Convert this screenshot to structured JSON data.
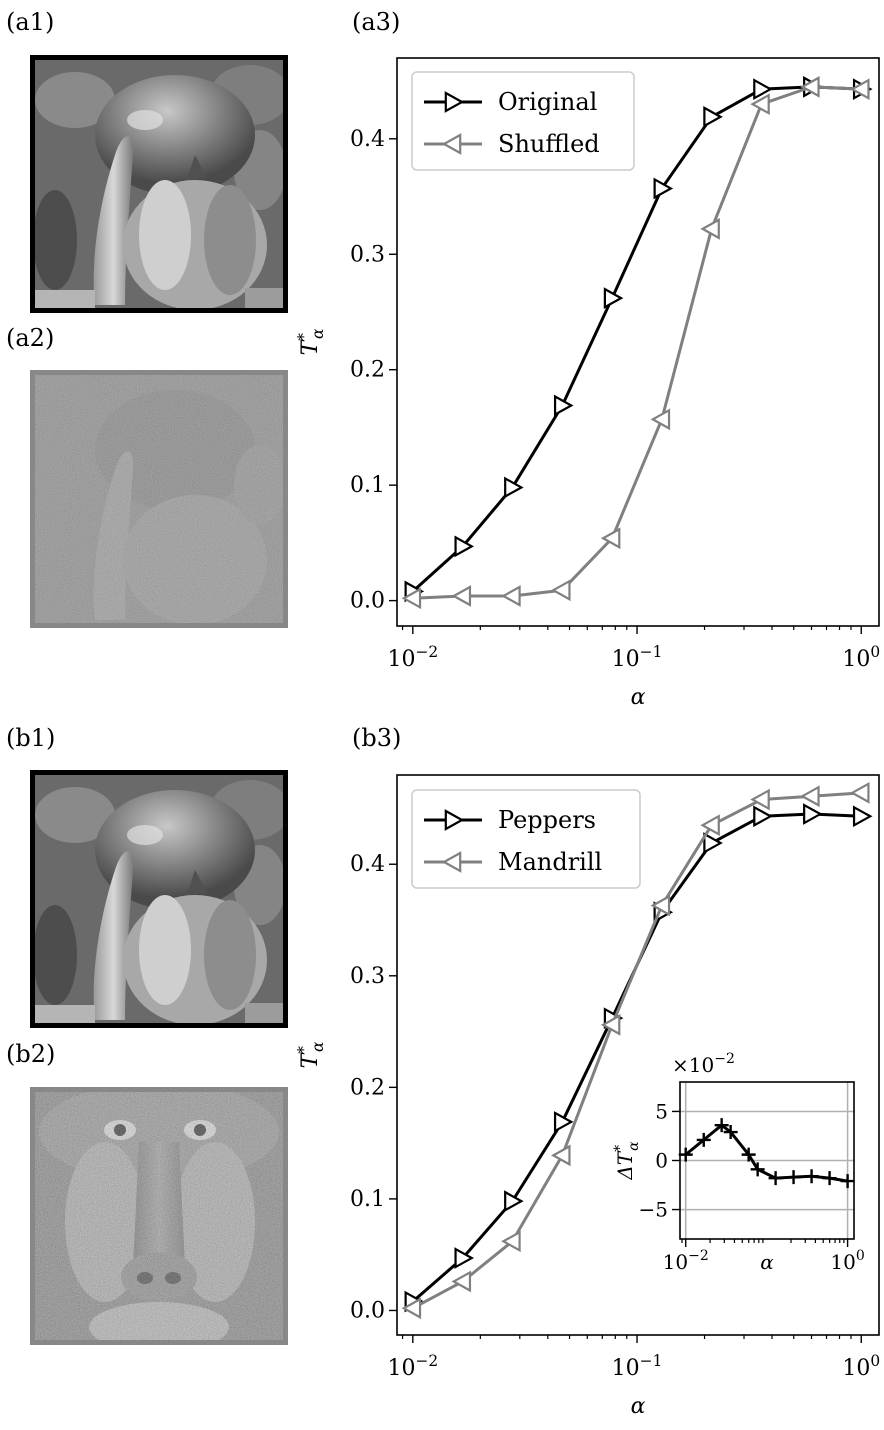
{
  "panels": {
    "a1": "(a1)",
    "a2": "(a2)",
    "a3": "(a3)",
    "b1": "(b1)",
    "b2": "(b2)",
    "b3": "(b3)"
  },
  "images": {
    "a1": "peppers-grayscale-image",
    "a2": "peppers-shuffled-noisy-image",
    "b1": "peppers-grayscale-image",
    "b2": "mandrill-grayscale-image"
  },
  "colors": {
    "black": "#000000",
    "gray": "#808080",
    "grid": "#b0b0b0"
  },
  "chart_data": [
    {
      "type": "line",
      "panel": "(a3)",
      "xlabel": "α",
      "ylabel": "T*_α",
      "xscale": "log",
      "xlim": [
        0.0085,
        1.2
      ],
      "ylim": [
        -0.022,
        0.47
      ],
      "xticks": [
        0.01,
        0.1,
        1
      ],
      "xtick_labels": [
        "10^-2",
        "10^-1",
        "10^0"
      ],
      "yticks": [
        0.0,
        0.1,
        0.2,
        0.3,
        0.4
      ],
      "ytick_labels": [
        "0.0",
        "0.1",
        "0.2",
        "0.3",
        "0.4"
      ],
      "legend_position": "top-left",
      "series": [
        {
          "name": "Original",
          "color": "#000000",
          "marker": "triangle-right",
          "x": [
            0.01,
            0.0167,
            0.0278,
            0.0464,
            0.0774,
            0.129,
            0.215,
            0.359,
            0.599,
            1.0
          ],
          "y": [
            0.008,
            0.047,
            0.098,
            0.169,
            0.262,
            0.357,
            0.419,
            0.443,
            0.445,
            0.443
          ]
        },
        {
          "name": "Shuffled",
          "color": "#808080",
          "marker": "triangle-left",
          "x": [
            0.01,
            0.0167,
            0.0278,
            0.0464,
            0.0774,
            0.129,
            0.215,
            0.359,
            0.599,
            1.0
          ],
          "y": [
            0.002,
            0.004,
            0.004,
            0.009,
            0.054,
            0.157,
            0.322,
            0.43,
            0.445,
            0.443
          ]
        }
      ]
    },
    {
      "type": "line",
      "panel": "(b3)",
      "xlabel": "α",
      "ylabel": "T*_α",
      "xscale": "log",
      "xlim": [
        0.0085,
        1.2
      ],
      "ylim": [
        -0.022,
        0.48
      ],
      "xticks": [
        0.01,
        0.1,
        1
      ],
      "xtick_labels": [
        "10^-2",
        "10^-1",
        "10^0"
      ],
      "yticks": [
        0.0,
        0.1,
        0.2,
        0.3,
        0.4
      ],
      "ytick_labels": [
        "0.0",
        "0.1",
        "0.2",
        "0.3",
        "0.4"
      ],
      "legend_position": "top-left",
      "series": [
        {
          "name": "Peppers",
          "color": "#000000",
          "marker": "triangle-right",
          "x": [
            0.01,
            0.0167,
            0.0278,
            0.0464,
            0.0774,
            0.129,
            0.215,
            0.359,
            0.599,
            1.0
          ],
          "y": [
            0.008,
            0.047,
            0.098,
            0.169,
            0.262,
            0.357,
            0.419,
            0.443,
            0.445,
            0.443
          ]
        },
        {
          "name": "Mandrill",
          "color": "#808080",
          "marker": "triangle-left",
          "x": [
            0.01,
            0.0167,
            0.0278,
            0.0464,
            0.0774,
            0.129,
            0.215,
            0.359,
            0.599,
            1.0
          ],
          "y": [
            0.002,
            0.026,
            0.062,
            0.139,
            0.256,
            0.363,
            0.435,
            0.458,
            0.461,
            0.464
          ]
        }
      ]
    },
    {
      "type": "line",
      "panel": "(b3) inset",
      "xlabel": "α",
      "ylabel": "ΔT*_α",
      "scale_label": "×10^-2",
      "xscale": "log",
      "xlim": [
        0.0085,
        1.2
      ],
      "ylim": [
        -8.0,
        8.0
      ],
      "xticks": [
        0.01,
        1
      ],
      "xtick_labels": [
        "10^-2",
        "10^0"
      ],
      "yticks": [
        5,
        0,
        -5
      ],
      "ytick_labels": [
        "5",
        "0",
        "−5"
      ],
      "grid": true,
      "series": [
        {
          "color": "#000000",
          "marker": "plus",
          "x": [
            0.01,
            0.0167,
            0.0278,
            0.0359,
            0.0599,
            0.0774,
            0.129,
            0.215,
            0.359,
            0.599,
            1.0
          ],
          "y": [
            0.6,
            2.1,
            3.6,
            2.9,
            0.6,
            -0.9,
            -1.8,
            -1.7,
            -1.6,
            -1.8,
            -2.1
          ]
        }
      ]
    }
  ]
}
